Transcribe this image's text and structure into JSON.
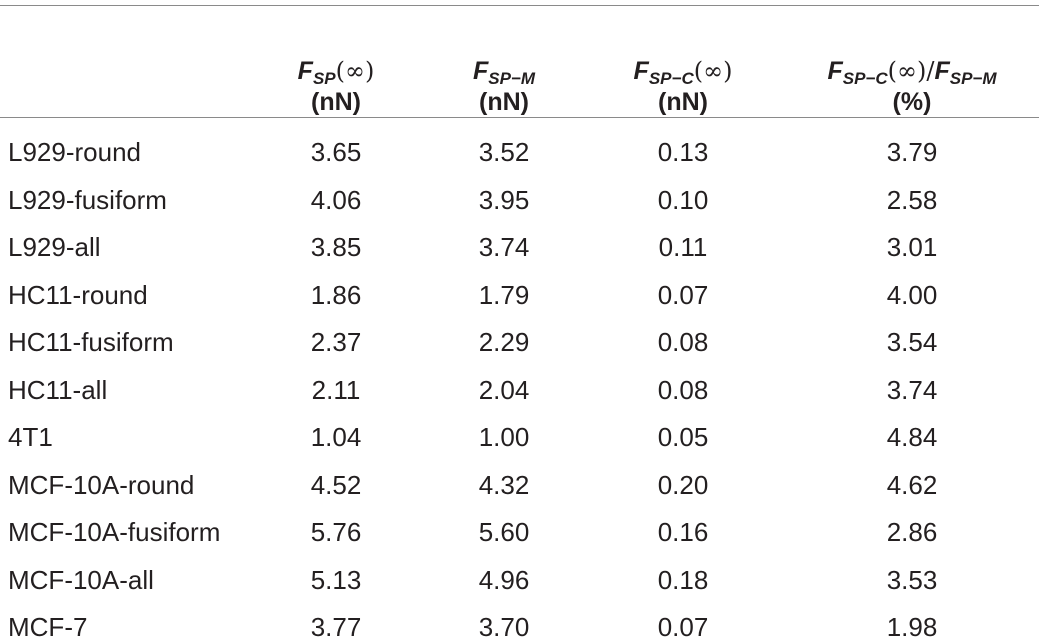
{
  "table": {
    "header": [
      {
        "label": [
          {
            "f": "F"
          },
          {
            "sub": "SP"
          },
          {
            "t": "(∞)"
          }
        ],
        "unit": "(nN)"
      },
      {
        "label": [
          {
            "f": "F"
          },
          {
            "sub": "SP−M"
          }
        ],
        "unit": "(nN)"
      },
      {
        "label": [
          {
            "f": "F"
          },
          {
            "sub": "SP−C"
          },
          {
            "t": "(∞)"
          }
        ],
        "unit": "(nN)"
      },
      {
        "label": [
          {
            "f": "F"
          },
          {
            "sub": "SP−C"
          },
          {
            "t": "(∞)/"
          },
          {
            "f": "F"
          },
          {
            "sub": "SP−M"
          }
        ],
        "unit": "(%)"
      }
    ],
    "rows": [
      [
        "L929-round",
        "3.65",
        "3.52",
        "0.13",
        "3.79"
      ],
      [
        "L929-fusiform",
        "4.06",
        "3.95",
        "0.10",
        "2.58"
      ],
      [
        "L929-all",
        "3.85",
        "3.74",
        "0.11",
        "3.01"
      ],
      [
        "HC11-round",
        "1.86",
        "1.79",
        "0.07",
        "4.00"
      ],
      [
        "HC11-fusiform",
        "2.37",
        "2.29",
        "0.08",
        "3.54"
      ],
      [
        "HC11-all",
        "2.11",
        "2.04",
        "0.08",
        "3.74"
      ],
      [
        "4T1",
        "1.04",
        "1.00",
        "0.05",
        "4.84"
      ],
      [
        "MCF-10A-round",
        "4.52",
        "4.32",
        "0.20",
        "4.62"
      ],
      [
        "MCF-10A-fusiform",
        "5.76",
        "5.60",
        "0.16",
        "2.86"
      ],
      [
        "MCF-10A-all",
        "5.13",
        "4.96",
        "0.18",
        "3.53"
      ],
      [
        "MCF-7",
        "3.77",
        "3.70",
        "0.07",
        "1.98"
      ]
    ]
  }
}
